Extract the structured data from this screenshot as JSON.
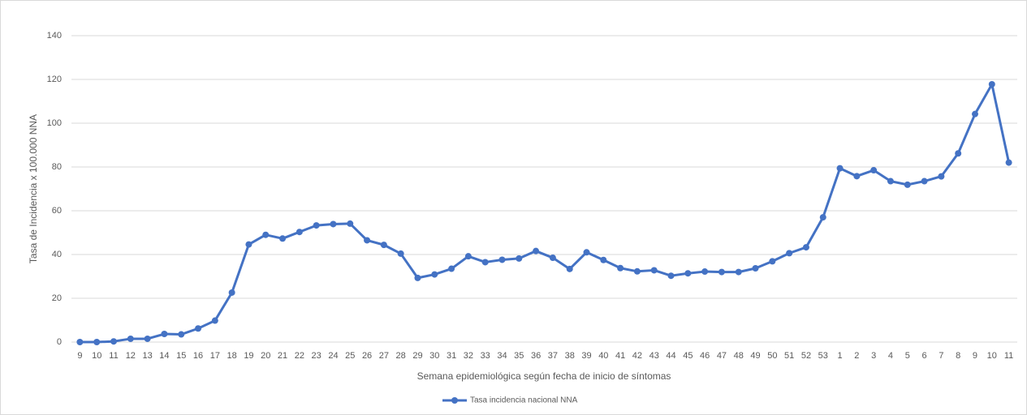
{
  "chart_data": {
    "type": "line",
    "y_label": "Tasa de Incidencia  x 100.000 NNA",
    "x_label": "Semana epidemiológica según fecha de inicio de síntomas",
    "categories": [
      "9",
      "10",
      "11",
      "12",
      "13",
      "14",
      "15",
      "16",
      "17",
      "18",
      "19",
      "20",
      "21",
      "22",
      "23",
      "24",
      "25",
      "26",
      "27",
      "28",
      "29",
      "30",
      "31",
      "32",
      "33",
      "34",
      "35",
      "36",
      "37",
      "38",
      "39",
      "40",
      "41",
      "42",
      "43",
      "44",
      "45",
      "46",
      "47",
      "48",
      "49",
      "50",
      "51",
      "52",
      "53",
      "1",
      "2",
      "3",
      "4",
      "5",
      "6",
      "7",
      "8",
      "9",
      "10",
      "11"
    ],
    "series": [
      {
        "name": "Tasa incidencia nacional NNA",
        "color": "#4472c4",
        "values": [
          0,
          0,
          0.3,
          1.5,
          1.5,
          3.7,
          3.5,
          6.2,
          9.8,
          22.6,
          44.6,
          49,
          47.3,
          50.3,
          53.3,
          53.9,
          54.1,
          46.5,
          44.4,
          40.4,
          29.3,
          30.9,
          33.5,
          39.2,
          36.5,
          37.6,
          38.2,
          41.6,
          38.5,
          33.4,
          41,
          37.5,
          33.8,
          32.3,
          32.8,
          30.3,
          31.4,
          32.2,
          32,
          32,
          33.7,
          36.9,
          40.6,
          43.3,
          57,
          79.4,
          75.8,
          78.5,
          73.5,
          71.9,
          73.5,
          75.7,
          86.2,
          104.2,
          117.8,
          82
        ]
      }
    ],
    "ylim": [
      0,
      140
    ],
    "yticks": [
      0,
      20,
      40,
      60,
      80,
      100,
      120,
      140
    ],
    "grid": true,
    "legend": "bottom"
  }
}
